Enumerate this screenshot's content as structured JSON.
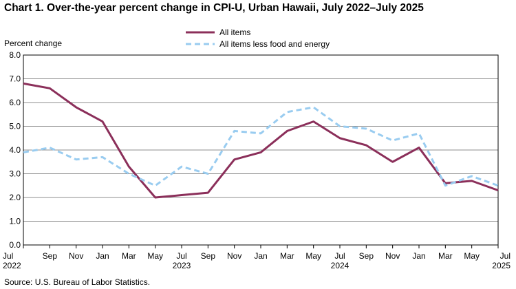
{
  "chart_data": {
    "type": "line",
    "title": "Chart 1. Over-the-year percent change in CPI-U, Urban Hawaii, July 2022–July  2025",
    "ylabel": "Percent change",
    "xlabel": "",
    "ylim": [
      0,
      8
    ],
    "yticks": [
      "0.0",
      "1.0",
      "2.0",
      "3.0",
      "4.0",
      "5.0",
      "6.0",
      "7.0",
      "8.0"
    ],
    "x_month_labels": [
      "Jul",
      "Sep",
      "Nov",
      "Jan",
      "Mar",
      "May",
      "Jul",
      "Sep",
      "Nov",
      "Jan",
      "Mar",
      "May",
      "Jul",
      "Sep",
      "Nov",
      "Jan",
      "Mar",
      "May",
      "Jul"
    ],
    "x_year_labels": [
      {
        "index": 0,
        "label": "2022"
      },
      {
        "index": 6,
        "label": "2023"
      },
      {
        "index": 12,
        "label": "2024"
      },
      {
        "index": 18,
        "label": "2025"
      }
    ],
    "grid": true,
    "legend_position": "top",
    "series": [
      {
        "name": "All items",
        "color": "#8b2f5a",
        "style": "solid",
        "values": [
          6.8,
          6.6,
          5.8,
          5.2,
          3.3,
          2.0,
          2.1,
          2.2,
          3.6,
          3.9,
          4.8,
          5.2,
          4.5,
          4.2,
          3.5,
          4.1,
          2.6,
          2.7,
          2.3
        ]
      },
      {
        "name": "All items less food and energy",
        "color": "#99ccf0",
        "style": "dashed",
        "values": [
          3.9,
          4.1,
          3.6,
          3.7,
          3.0,
          2.5,
          3.3,
          3.0,
          4.8,
          4.7,
          5.6,
          5.8,
          5.0,
          4.9,
          4.4,
          4.7,
          2.5,
          2.9,
          2.5
        ]
      }
    ],
    "source": "Source:  U.S. Bureau  of Labor Statistics."
  }
}
